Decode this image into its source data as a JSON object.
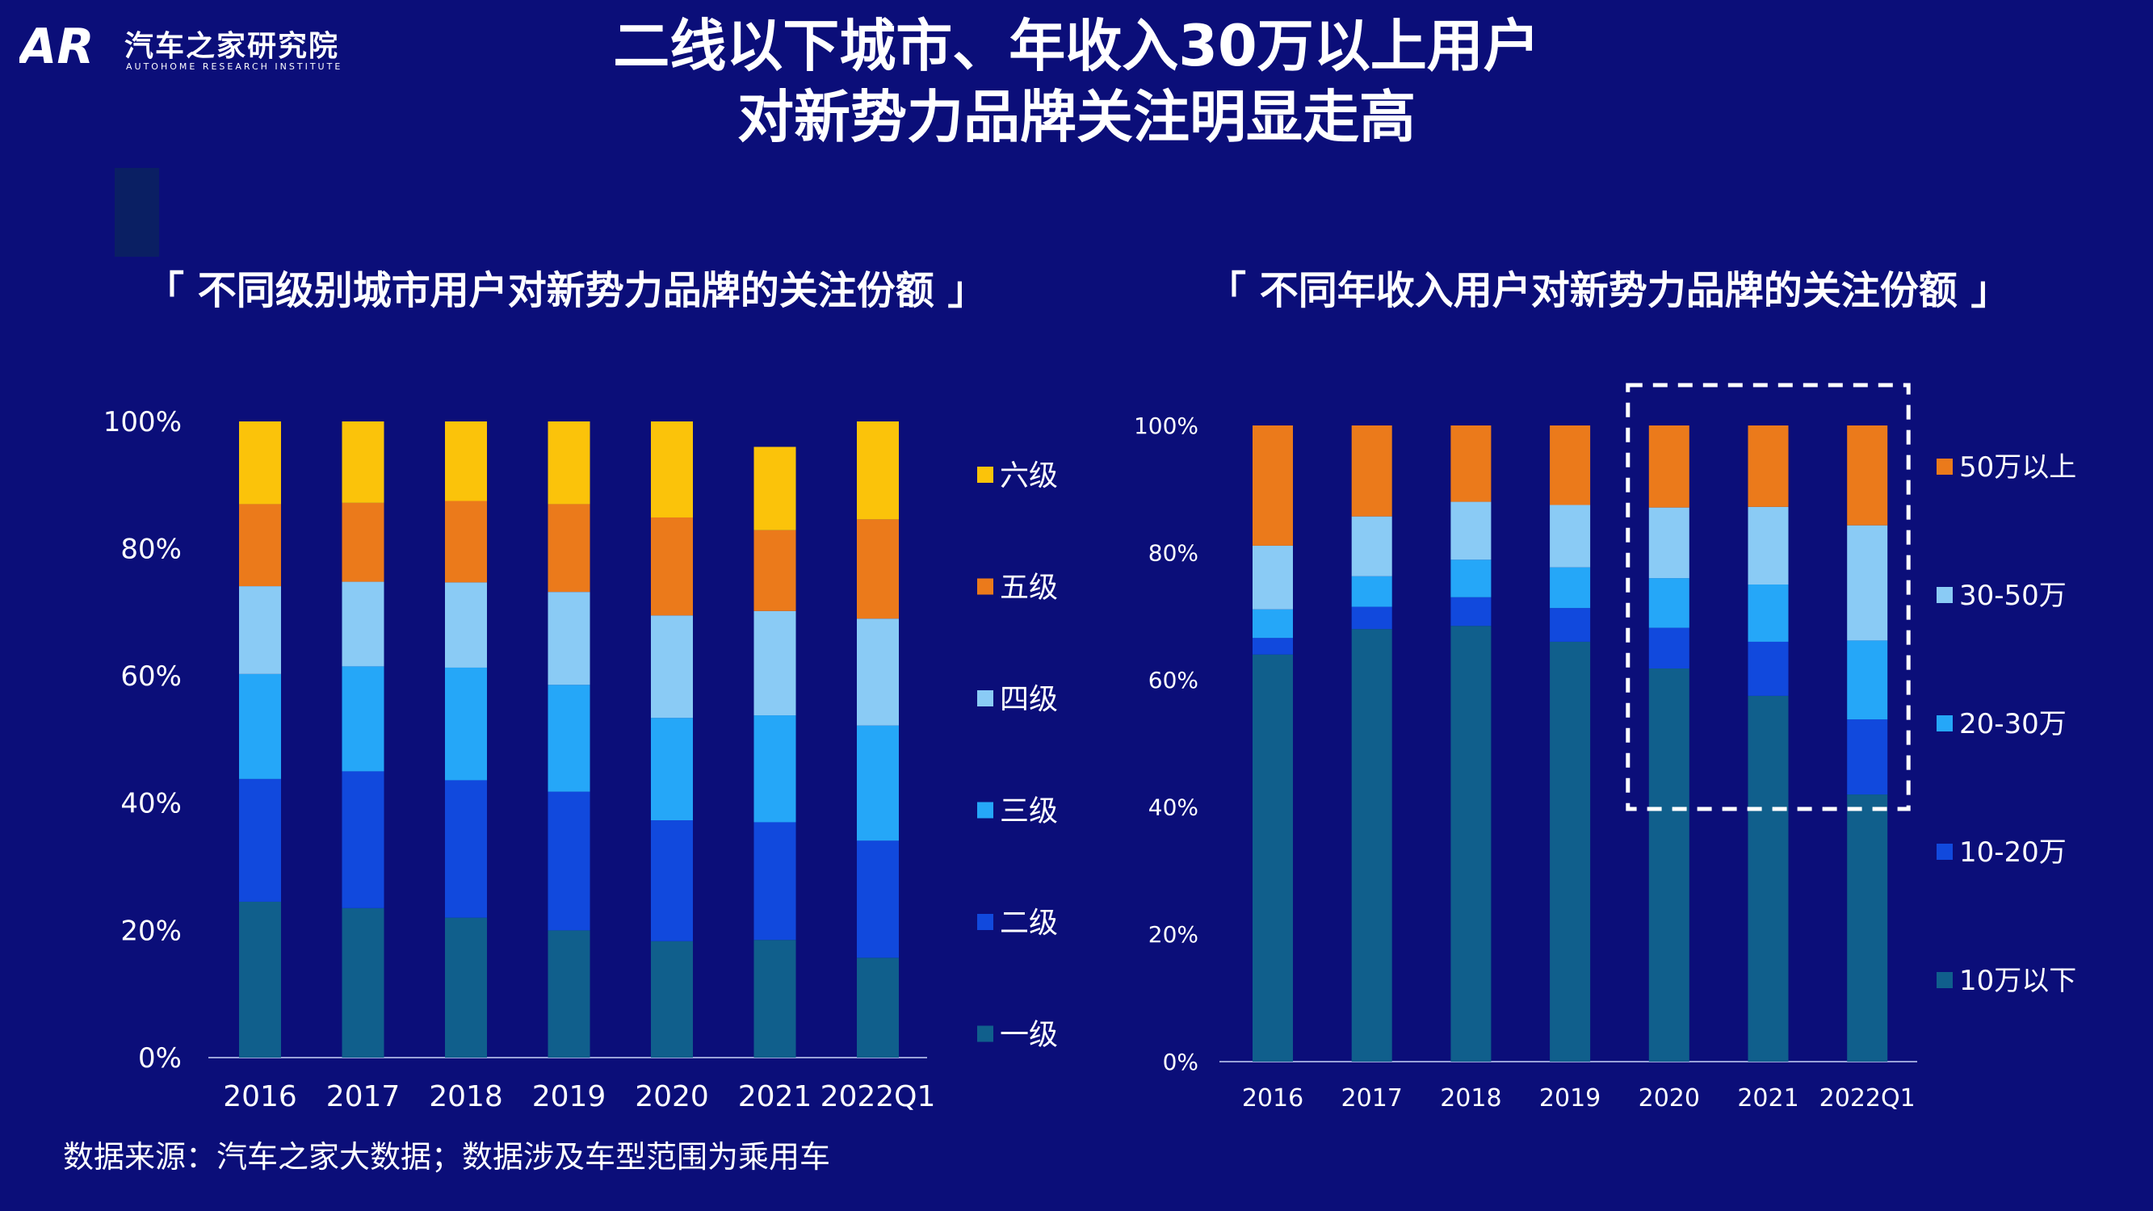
{
  "logo": {
    "mark": "AR",
    "name_cn": "汽车之家研究院",
    "name_en": "AUTOHOME RESEARCH INSTITUTE"
  },
  "title": {
    "line1": "二线以下城市、年收入30万以上用户",
    "line2": "对新势力品牌关注明显走高"
  },
  "source": "数据来源：汽车之家大数据；数据涉及车型范围为乘用车",
  "colors": {
    "background": "#0B0E79",
    "deco": "#0A1F63",
    "series": [
      "#105F8C",
      "#1149DD",
      "#25A7F8",
      "#8ACBF5",
      "#EB7A1B",
      "#FBC30A"
    ]
  },
  "chart_data": [
    {
      "type": "bar",
      "stacked": true,
      "title": "「 不同级别城市用户对新势力品牌的关注份额 」",
      "categories": [
        "2016",
        "2017",
        "2018",
        "2019",
        "2020",
        "2021",
        "2022Q1"
      ],
      "ylim": [
        0,
        100
      ],
      "yticks": [
        "0%",
        "20%",
        "40%",
        "60%",
        "80%",
        "100%"
      ],
      "legend_position": "right",
      "series": [
        {
          "name": "一级",
          "values": [
            24.5,
            23.5,
            22.0,
            20.0,
            18.3,
            18.5,
            15.7
          ]
        },
        {
          "name": "二级",
          "values": [
            19.3,
            21.5,
            21.6,
            21.8,
            19.0,
            18.5,
            18.4
          ]
        },
        {
          "name": "三级",
          "values": [
            16.5,
            16.5,
            17.7,
            16.8,
            16.1,
            16.8,
            18.1
          ]
        },
        {
          "name": "四级",
          "values": [
            13.8,
            13.3,
            13.4,
            14.6,
            16.1,
            16.4,
            16.8
          ]
        },
        {
          "name": "五级",
          "values": [
            12.9,
            12.4,
            12.8,
            13.8,
            15.4,
            12.7,
            15.6
          ]
        },
        {
          "name": "六级",
          "values": [
            13.0,
            12.8,
            12.5,
            13.0,
            15.1,
            13.1,
            15.4
          ]
        }
      ]
    },
    {
      "type": "bar",
      "stacked": true,
      "title": "「 不同年收入用户对新势力品牌的关注份额 」",
      "categories": [
        "2016",
        "2017",
        "2018",
        "2019",
        "2020",
        "2021",
        "2022Q1"
      ],
      "ylim": [
        0,
        100
      ],
      "yticks": [
        "0%",
        "20%",
        "40%",
        "60%",
        "80%",
        "100%"
      ],
      "legend_position": "right",
      "highlight_categories": [
        "2020",
        "2021",
        "2022Q1"
      ],
      "series": [
        {
          "name": "10万以下",
          "values": [
            64.0,
            68.0,
            68.5,
            66.0,
            61.8,
            57.5,
            42.0
          ]
        },
        {
          "name": "10-20万",
          "values": [
            2.6,
            3.5,
            4.5,
            5.3,
            6.4,
            8.5,
            11.8
          ]
        },
        {
          "name": "20-30万",
          "values": [
            4.5,
            4.8,
            5.9,
            6.4,
            7.8,
            9.0,
            12.4
          ]
        },
        {
          "name": "30-50万",
          "values": [
            10.0,
            9.4,
            9.1,
            9.8,
            11.1,
            12.2,
            18.1
          ]
        },
        {
          "name": "50万以上",
          "values": [
            18.9,
            14.3,
            12.0,
            12.5,
            12.9,
            12.8,
            15.7
          ]
        }
      ]
    }
  ]
}
